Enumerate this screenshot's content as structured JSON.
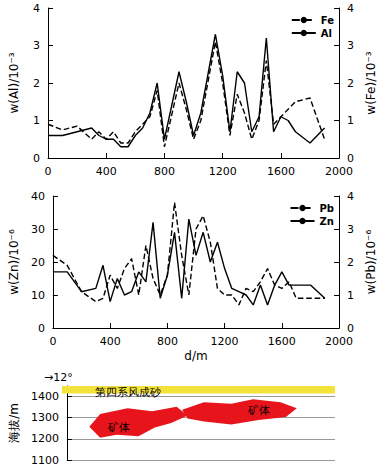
{
  "chart_data": [
    {
      "type": "line",
      "x": [
        0,
        100,
        200,
        300,
        350,
        400,
        450,
        500,
        550,
        600,
        650,
        700,
        750,
        800,
        900,
        950,
        1000,
        1050,
        1150,
        1200,
        1250,
        1300,
        1350,
        1400,
        1450,
        1500,
        1550,
        1600,
        1650,
        1700,
        1800,
        1900
      ],
      "series": [
        {
          "name": "Fe",
          "color": "#000000",
          "line_style": "dashed",
          "axis": "y2",
          "values": [
            0.9,
            0.75,
            0.85,
            0.5,
            0.7,
            0.5,
            0.7,
            0.4,
            0.4,
            0.7,
            0.9,
            1.1,
            1.8,
            0.3,
            2.0,
            1.3,
            0.5,
            1.0,
            3.1,
            2.0,
            0.6,
            1.7,
            1.2,
            0.5,
            1.0,
            2.6,
            0.9,
            1.1,
            1.3,
            1.5,
            1.6,
            0.5
          ]
        },
        {
          "name": "Al",
          "color": "#000000",
          "line_style": "solid",
          "values": [
            0.6,
            0.6,
            0.7,
            0.8,
            0.6,
            0.5,
            0.5,
            0.3,
            0.3,
            0.6,
            0.8,
            1.2,
            2.0,
            0.5,
            2.3,
            1.5,
            0.6,
            1.2,
            3.3,
            2.2,
            0.7,
            2.3,
            2.0,
            0.7,
            1.1,
            3.2,
            0.7,
            1.1,
            1.0,
            0.7,
            0.4,
            0.8
          ]
        }
      ],
      "y_label": "w(Al)/10⁻³",
      "y2_label": "w(Fe)/10⁻³",
      "xlim": [
        0,
        2000
      ],
      "xticks": [
        0,
        400,
        800,
        1200,
        1600,
        2000
      ],
      "ylim": [
        0,
        4
      ],
      "yticks": [
        0,
        1,
        2,
        3,
        4
      ],
      "y2lim": [
        0,
        4
      ],
      "y2ticks": [
        0,
        1,
        2,
        3,
        4
      ],
      "legend": "upper right",
      "grid": false
    },
    {
      "type": "line",
      "x": [
        0,
        100,
        200,
        300,
        350,
        400,
        450,
        500,
        550,
        600,
        650,
        700,
        750,
        800,
        850,
        900,
        950,
        1000,
        1050,
        1100,
        1150,
        1200,
        1250,
        1300,
        1350,
        1400,
        1450,
        1500,
        1550,
        1600,
        1650,
        1700,
        1800,
        1900
      ],
      "series": [
        {
          "name": "Pb",
          "color": "#000000",
          "line_style": "dashed",
          "axis": "y2",
          "values": [
            2.2,
            1.9,
            1.1,
            0.8,
            0.9,
            1.6,
            1.2,
            1.8,
            2.1,
            1.0,
            2.5,
            1.5,
            1.0,
            1.6,
            3.8,
            2.2,
            1.0,
            3.0,
            3.4,
            2.6,
            1.2,
            1.0,
            1.0,
            0.7,
            1.2,
            1.1,
            1.4,
            1.8,
            1.3,
            1.2,
            1.4,
            0.9,
            0.9,
            0.9
          ]
        },
        {
          "name": "Zn",
          "color": "#000000",
          "line_style": "solid",
          "values": [
            17,
            17,
            11,
            12,
            19,
            8,
            15,
            10,
            11,
            17,
            14,
            32,
            9,
            16,
            29,
            9,
            33,
            22,
            29,
            20,
            26,
            18,
            12,
            11,
            10,
            7,
            13,
            7,
            13,
            17,
            13,
            13,
            13,
            9
          ]
        }
      ],
      "x_label": "d/m",
      "y_label": "w(Zn)/10⁻⁶",
      "y2_label": "w(Pb)/10⁻⁶",
      "xlim": [
        0,
        2000
      ],
      "xticks": [
        0,
        400,
        800,
        1200,
        1600,
        2000
      ],
      "ylim": [
        0,
        40
      ],
      "yticks": [
        0,
        10,
        20,
        30,
        40
      ],
      "y2lim": [
        0,
        4
      ],
      "y2ticks": [
        0,
        1,
        2,
        3,
        4
      ],
      "legend": "upper right",
      "grid": false
    },
    {
      "type": "section",
      "y_label": "海拔/m",
      "ylim": [
        1100,
        1450
      ],
      "yticks": [
        1100,
        1200,
        1300,
        1400
      ],
      "grid": true,
      "tick_labels": "y",
      "annotations": [
        "→12°",
        "第四系风成砂",
        "矿体",
        "矿体"
      ]
    }
  ]
}
